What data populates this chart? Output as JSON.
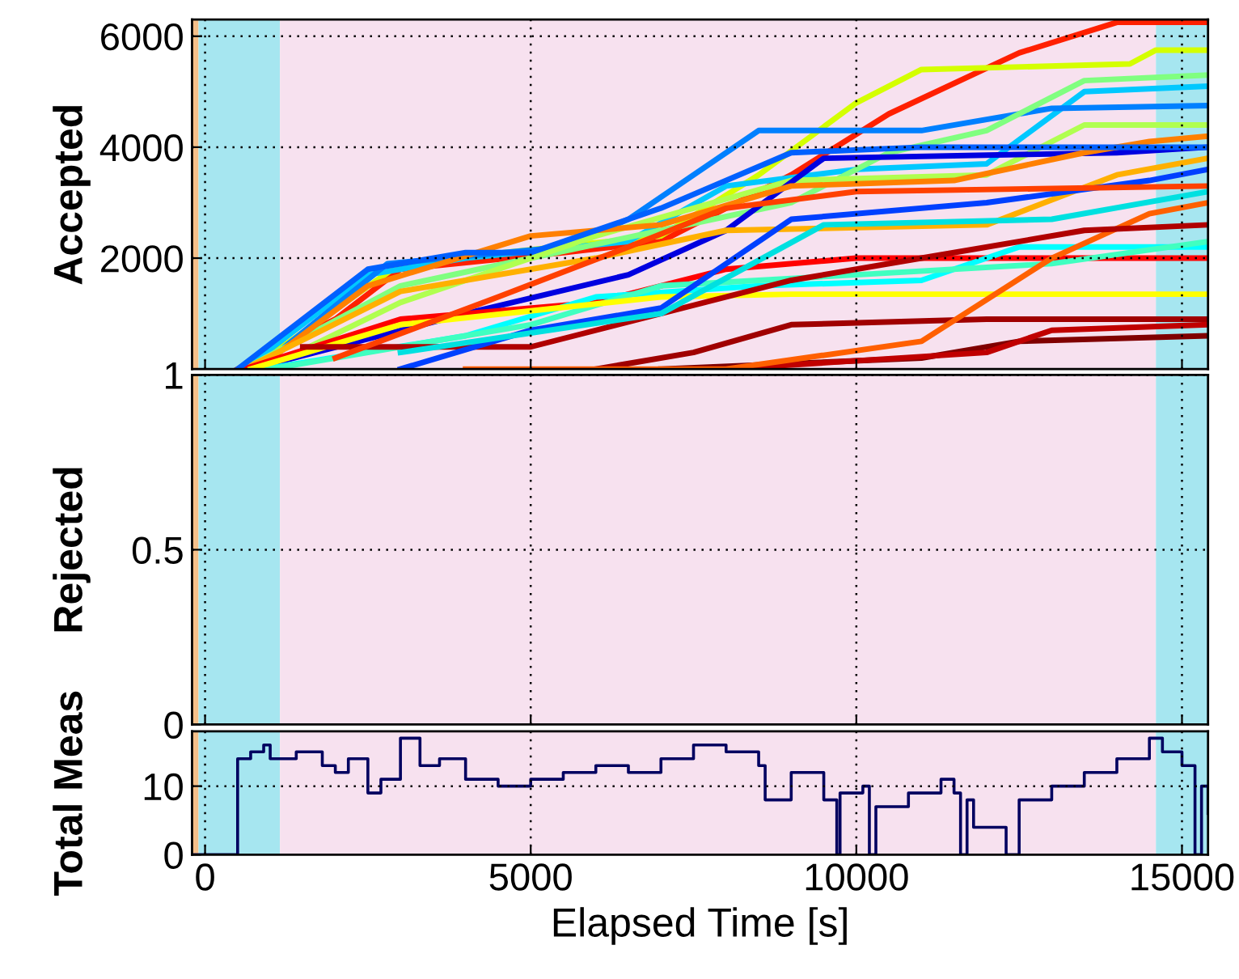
{
  "chart_data": [
    {
      "type": "line",
      "ylabel": "Accepted",
      "xlim": [
        -200,
        15400
      ],
      "ylim": [
        0,
        6300
      ],
      "xticks": [
        0,
        5000,
        10000,
        15000
      ],
      "yticks": [
        2000,
        4000,
        6000
      ],
      "tick_labels": "y",
      "grid": true,
      "legend": false,
      "bands": [
        {
          "axis": "x",
          "from": -200,
          "to": -100,
          "color": "#f5c08a"
        },
        {
          "axis": "x",
          "from": -100,
          "to": 1150,
          "color": "#a6e6f0"
        },
        {
          "axis": "x",
          "from": 1150,
          "to": 14600,
          "color": "#f7e1ef"
        },
        {
          "axis": "x",
          "from": 14600,
          "to": 15400,
          "color": "#a6e6f0"
        }
      ],
      "series": [
        {
          "color": "#ff2000",
          "x": [
            500,
            2000,
            3000,
            5500,
            7000,
            9000,
            10500,
            12500,
            14000,
            15400
          ],
          "values": [
            0,
            900,
            1800,
            2100,
            2300,
            3500,
            4600,
            5700,
            6250,
            6250
          ]
        },
        {
          "color": "#d4ff00",
          "x": [
            700,
            3000,
            5000,
            7000,
            8500,
            10000,
            11000,
            14200,
            14600,
            15400
          ],
          "values": [
            0,
            1900,
            2150,
            2400,
            3500,
            4800,
            5400,
            5500,
            5750,
            5750
          ]
        },
        {
          "color": "#00c8ff",
          "x": [
            600,
            2500,
            4000,
            6500,
            8000,
            10000,
            12000,
            13500,
            15400
          ],
          "values": [
            0,
            1700,
            2000,
            2300,
            3300,
            3600,
            3700,
            5000,
            5100
          ]
        },
        {
          "color": "#0080ff",
          "x": [
            800,
            2800,
            5500,
            6500,
            8500,
            11000,
            13000,
            15400
          ],
          "values": [
            0,
            1900,
            2200,
            2700,
            4300,
            4300,
            4700,
            4750
          ]
        },
        {
          "color": "#80ff80",
          "x": [
            600,
            3000,
            7000,
            9000,
            10500,
            12000,
            13500,
            15400
          ],
          "values": [
            0,
            1500,
            2500,
            3000,
            3900,
            4300,
            5200,
            5300
          ]
        },
        {
          "color": "#b0ff50",
          "x": [
            900,
            3000,
            6000,
            9000,
            12000,
            13500,
            15400
          ],
          "values": [
            0,
            1200,
            2400,
            3400,
            3500,
            4400,
            4400
          ]
        },
        {
          "color": "#0000e0",
          "x": [
            700,
            4000,
            6500,
            8000,
            9500,
            14000,
            15400
          ],
          "values": [
            0,
            1000,
            1700,
            2500,
            3800,
            3900,
            4000
          ]
        },
        {
          "color": "#ff8000",
          "x": [
            800,
            2500,
            5000,
            7000,
            9000,
            11500,
            13500,
            14500,
            15400
          ],
          "values": [
            0,
            1500,
            2400,
            2600,
            3300,
            3400,
            3900,
            4100,
            4200
          ]
        },
        {
          "color": "#ffb000",
          "x": [
            600,
            3000,
            6000,
            8000,
            12000,
            14000,
            15400
          ],
          "values": [
            0,
            1400,
            2000,
            2500,
            2600,
            3500,
            3800
          ]
        },
        {
          "color": "#ff0000",
          "x": [
            600,
            3000,
            6000,
            8000,
            10000,
            15400
          ],
          "values": [
            0,
            900,
            1200,
            1800,
            2000,
            2000
          ]
        },
        {
          "color": "#00ffff",
          "x": [
            900,
            4000,
            6000,
            8500,
            11000,
            12500,
            15400
          ],
          "values": [
            0,
            600,
            1300,
            1500,
            1600,
            2200,
            2200
          ]
        },
        {
          "color": "#40ffc0",
          "x": [
            1000,
            5000,
            7000,
            10000,
            13000,
            15400
          ],
          "values": [
            0,
            800,
            1500,
            1700,
            1900,
            2300
          ]
        },
        {
          "color": "#ffff00",
          "x": [
            700,
            3000,
            7000,
            9000,
            15400
          ],
          "values": [
            0,
            800,
            1300,
            1350,
            1350
          ]
        },
        {
          "color": "#a00000",
          "x": [
            6000,
            7500,
            9000,
            12000,
            15400
          ],
          "values": [
            0,
            300,
            800,
            900,
            900
          ]
        },
        {
          "color": "#800000",
          "x": [
            7000,
            11000,
            12500,
            15400
          ],
          "values": [
            0,
            200,
            500,
            600
          ]
        },
        {
          "color": "#c00000",
          "x": [
            8000,
            12000,
            13000,
            15400
          ],
          "values": [
            0,
            300,
            700,
            800
          ]
        },
        {
          "color": "#ff6000",
          "x": [
            4000,
            8000,
            11000,
            13000,
            14500,
            15400
          ],
          "values": [
            0,
            0,
            500,
            2000,
            2800,
            3000
          ]
        },
        {
          "color": "#b00000",
          "x": [
            1500,
            5000,
            9000,
            11000,
            13500,
            15400
          ],
          "values": [
            400,
            400,
            1600,
            2000,
            2500,
            2600
          ]
        },
        {
          "color": "#0040ff",
          "x": [
            3000,
            5000,
            7000,
            9000,
            12000,
            14500,
            15400
          ],
          "values": [
            0,
            700,
            1100,
            2700,
            3000,
            3400,
            3600
          ]
        },
        {
          "color": "#ff4000",
          "x": [
            2000,
            4500,
            6500,
            8000,
            10000,
            15400
          ],
          "values": [
            200,
            1300,
            2200,
            2900,
            3200,
            3300
          ]
        },
        {
          "color": "#00e0e0",
          "x": [
            3000,
            7000,
            9500,
            13000,
            15400
          ],
          "values": [
            300,
            1000,
            2600,
            2700,
            3200
          ]
        },
        {
          "color": "#0060ff",
          "x": [
            500,
            2500,
            4000,
            5000,
            7000,
            9000,
            11000,
            15400
          ],
          "values": [
            0,
            1800,
            2100,
            2100,
            2900,
            3900,
            4000,
            4000
          ]
        }
      ]
    },
    {
      "type": "line",
      "ylabel": "Rejected",
      "xlim": [
        -200,
        15400
      ],
      "ylim": [
        0,
        1
      ],
      "xticks": [
        0,
        5000,
        10000,
        15000
      ],
      "yticks": [
        0,
        0.5,
        1
      ],
      "tick_labels": "y",
      "grid": true,
      "legend": false,
      "bands": [
        {
          "axis": "x",
          "from": -200,
          "to": -100,
          "color": "#f5c08a"
        },
        {
          "axis": "x",
          "from": -100,
          "to": 1150,
          "color": "#a6e6f0"
        },
        {
          "axis": "x",
          "from": 1150,
          "to": 14600,
          "color": "#f7e1ef"
        },
        {
          "axis": "x",
          "from": 14600,
          "to": 15400,
          "color": "#a6e6f0"
        }
      ]
    },
    {
      "type": "step",
      "ylabel": "Total Meas",
      "xlabel": "Elapsed Time [s]",
      "xlim": [
        -200,
        15400
      ],
      "ylim": [
        0,
        18
      ],
      "xticks": [
        0,
        5000,
        10000,
        15000
      ],
      "yticks": [
        0,
        10
      ],
      "grid": true,
      "legend": false,
      "bands": [
        {
          "axis": "x",
          "from": -200,
          "to": -100,
          "color": "#f5c08a"
        },
        {
          "axis": "x",
          "from": -100,
          "to": 1150,
          "color": "#a6e6f0"
        },
        {
          "axis": "x",
          "from": 1150,
          "to": 14600,
          "color": "#f7e1ef"
        },
        {
          "axis": "x",
          "from": 14600,
          "to": 15400,
          "color": "#a6e6f0"
        }
      ],
      "series": [
        {
          "color": "#000060",
          "x": [
            -200,
            500,
            500,
            700,
            900,
            1000,
            1400,
            1800,
            2000,
            2200,
            2500,
            2700,
            3000,
            3000,
            3300,
            3600,
            4000,
            4500,
            5000,
            5500,
            6000,
            6500,
            7000,
            7500,
            8000,
            8500,
            8600,
            9000,
            9500,
            9700,
            9750,
            10100,
            10200,
            10300,
            10800,
            11300,
            11500,
            11600,
            11700,
            11800,
            12300,
            12300,
            12500,
            13000,
            13500,
            14000,
            14500,
            14700,
            15000,
            15200,
            15300,
            15400
          ],
          "values": [
            0,
            0,
            14,
            15,
            16,
            14,
            15,
            13,
            12,
            14,
            9,
            11,
            11,
            17,
            13,
            14,
            11,
            10,
            11,
            12,
            13,
            12,
            14,
            16,
            15,
            13,
            8,
            12,
            8,
            0,
            9,
            10,
            0,
            7,
            9,
            11,
            9,
            0,
            8,
            4,
            4,
            0,
            8,
            10,
            12,
            14,
            17,
            15,
            13,
            0,
            10,
            6
          ]
        }
      ]
    }
  ]
}
